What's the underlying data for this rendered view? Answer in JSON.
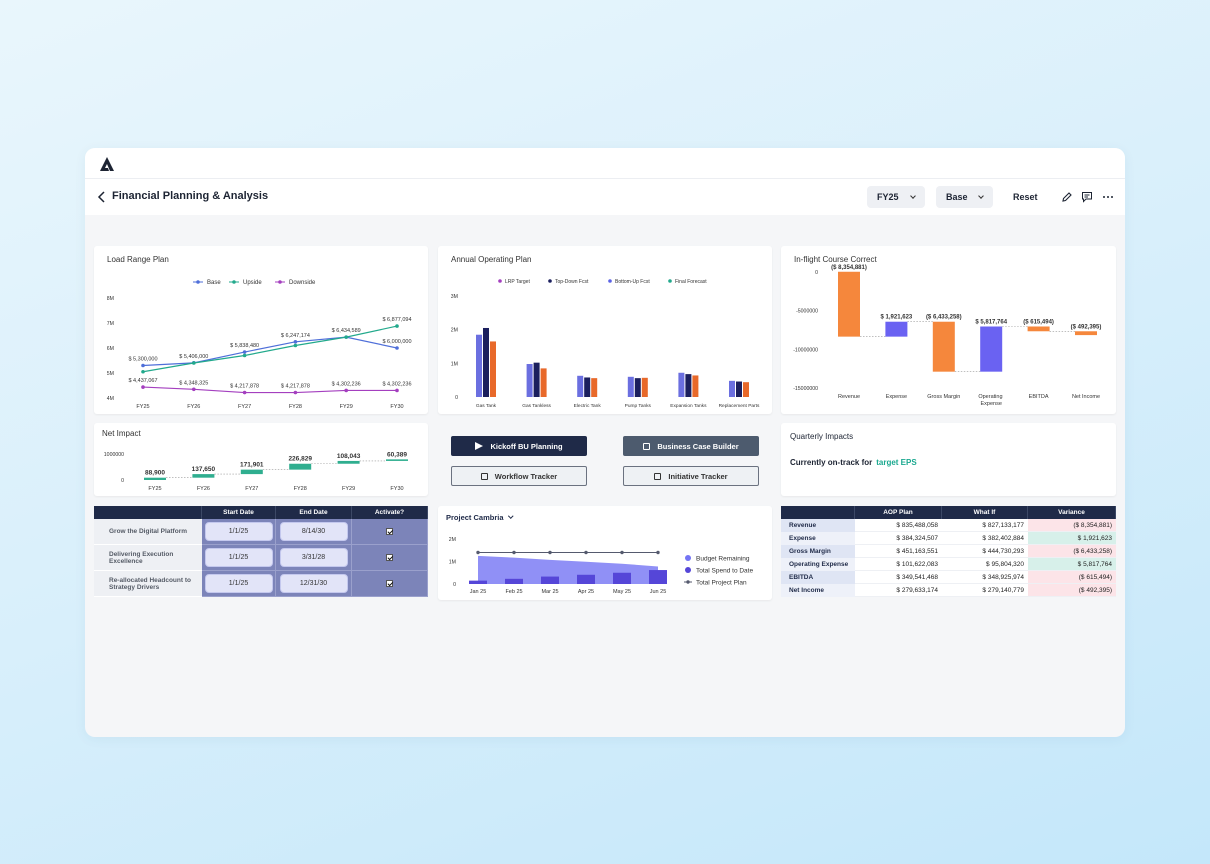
{
  "header": {
    "title": "Financial Planning & Analysis",
    "period": "FY25",
    "scenario": "Base",
    "reset": "Reset"
  },
  "load_range_plan": {
    "type": "line",
    "title": "Load Range Plan",
    "categories": [
      "FY25",
      "FY26",
      "FY27",
      "FY28",
      "FY29",
      "FY30"
    ],
    "ylim": [
      4000000,
      8000000
    ],
    "yticks": [
      {
        "value": 4000000,
        "label": "4M"
      },
      {
        "value": 5000000,
        "label": "5M"
      },
      {
        "value": 6000000,
        "label": "6M"
      },
      {
        "value": 7000000,
        "label": "7M"
      },
      {
        "value": 8000000,
        "label": "8M"
      }
    ],
    "legend": "top",
    "series": [
      {
        "name": "Base",
        "color": "#4f6fd9",
        "values": [
          5300000,
          5406000,
          5838480,
          6247174,
          6434589,
          6000000
        ],
        "value_labels": [
          "$ 5,300,000",
          "$ 5,406,000",
          "$ 5,838,480",
          "$ 6,247,174",
          "$ 6,434,589",
          "$ 6,000,000"
        ]
      },
      {
        "name": "Upside",
        "color": "#22a98c",
        "values": [
          5050000,
          5400000,
          5700000,
          6100000,
          6434589,
          6877094
        ],
        "value_labels": [
          null,
          null,
          null,
          null,
          null,
          "$ 6,877,094"
        ]
      },
      {
        "name": "Downside",
        "color": "#a43fbf",
        "values": [
          4437067,
          4348325,
          4217878,
          4217878,
          4302236,
          4302236
        ],
        "value_labels": [
          "$ 4,437,067",
          "$ 4,348,325",
          "$ 4,217,878",
          "$ 4,217,878",
          "$ 4,302,236",
          "$ 4,302,236"
        ]
      }
    ]
  },
  "annual_operating_plan": {
    "type": "bar",
    "title": "Annual Operating Plan",
    "categories": [
      "Gas Tank",
      "Gas Tankless",
      "Electric Tank",
      "Pump Tanks",
      "Expansion Tanks",
      "Replacement Parts"
    ],
    "ylim": [
      0,
      3000000
    ],
    "yticks": [
      0,
      {
        "value": 1000000,
        "label": "1M"
      },
      {
        "value": 2000000,
        "label": "2M"
      },
      {
        "value": 3000000,
        "label": "3M"
      }
    ],
    "legend": [
      {
        "name": "LRP Target",
        "color": "#a43fbf"
      },
      {
        "name": "Top-Down Fcst",
        "color": "#1b1f5e"
      },
      {
        "name": "Bottom-Up Fcst",
        "color": "#5b63e6"
      },
      {
        "name": "Final Forecast",
        "color": "#22a98c"
      }
    ],
    "series": [
      {
        "color": "#6b6fe0",
        "values": [
          1850000,
          980000,
          630000,
          600000,
          720000,
          480000
        ]
      },
      {
        "color": "#1b1f5e",
        "values": [
          2050000,
          1020000,
          580000,
          560000,
          680000,
          460000
        ]
      },
      {
        "color": "#e8692a",
        "values": [
          1650000,
          850000,
          560000,
          570000,
          640000,
          440000
        ]
      }
    ]
  },
  "in_flight_course_correct": {
    "type": "waterfall",
    "title": "In-flight Course Correct",
    "categories": [
      "Revenue",
      "Expense",
      "Gross Margin",
      "Operating Expense",
      "EBITDA",
      "Net Income"
    ],
    "values": [
      -8354881,
      1921623,
      -6433258,
      5817764,
      -615494,
      -492395
    ],
    "value_labels": [
      "($ 8,354,881)",
      "$ 1,921,623",
      "($ 6,433,258)",
      "$ 5,817,764",
      "($ 615,494)",
      "($ 492,395)"
    ],
    "ylim": [
      -16000000,
      1000000
    ],
    "yticks": [
      0,
      -5000000,
      -10000000,
      -15000000
    ],
    "colors": {
      "increase": "#6a62f2",
      "decrease": "#f5873c"
    }
  },
  "net_impact": {
    "type": "waterfall",
    "title": "Net Impact",
    "categories": [
      "FY25",
      "FY26",
      "FY27",
      "FY28",
      "FY29",
      "FY30"
    ],
    "values": [
      88900,
      137650,
      171901,
      226829,
      108043,
      60389
    ],
    "value_labels": [
      "88,900",
      "137,650",
      "171,901",
      "226,829",
      "108,043",
      "60,389"
    ],
    "ylim": [
      0,
      1000000
    ],
    "yticks": [
      0,
      1000000
    ],
    "colors": {
      "increase": "#2fae8f",
      "decrease": "#2fae8f"
    }
  },
  "actions": [
    {
      "label": "Kickoff BU Planning",
      "style": "primary"
    },
    {
      "label": "Business Case Builder",
      "style": "secondary"
    },
    {
      "label": "Workflow Tracker",
      "style": "outline"
    },
    {
      "label": "Initiative Tracker",
      "style": "outline"
    }
  ],
  "quarterly_impacts": {
    "title": "Quarterly Impacts",
    "text": "Currently on-track for",
    "highlight": "target EPS"
  },
  "initiatives": {
    "columns": [
      "Start Date",
      "End Date",
      "Activate?"
    ],
    "rows": [
      {
        "name": "Grow the Digital Platform",
        "start": "1/1/25",
        "end": "8/14/30",
        "active": true
      },
      {
        "name": "Delivering Execution Excellence",
        "start": "1/1/25",
        "end": "3/31/28",
        "active": true
      },
      {
        "name": "Re-allocated Headcount to Strategy Drivers",
        "start": "1/1/25",
        "end": "12/31/30",
        "active": true
      }
    ]
  },
  "project_cambria": {
    "type": "combo",
    "title": "Project Cambria",
    "categories": [
      "Jan 25",
      "Feb 25",
      "Mar 25",
      "Apr 25",
      "May 25",
      "Jun 25"
    ],
    "ylim": [
      0,
      2000000
    ],
    "yticks": [
      0,
      {
        "value": 1000000,
        "label": "1M"
      },
      {
        "value": 2000000,
        "label": "2M"
      }
    ],
    "series": [
      {
        "name": "Budget Remaining",
        "kind": "area",
        "color": "#7474f4",
        "values": [
          1250000,
          1170000,
          1070000,
          990000,
          900000,
          780000
        ]
      },
      {
        "name": "Total Spend to Date",
        "kind": "bar",
        "color": "#5546d8",
        "values": [
          150000,
          230000,
          330000,
          410000,
          500000,
          620000
        ]
      },
      {
        "name": "Total Project Plan",
        "kind": "line",
        "color": "#555a6e",
        "values": [
          1400000,
          1400000,
          1400000,
          1400000,
          1400000,
          1400000
        ]
      }
    ]
  },
  "variance_table": {
    "columns": [
      "AOP Plan",
      "What If",
      "Variance"
    ],
    "rows": [
      {
        "label": "Revenue",
        "aop": "$ 835,488,058",
        "what_if": "$ 827,133,177",
        "variance": "($ 8,354,881)",
        "tone": "negative"
      },
      {
        "label": "Expense",
        "aop": "$ 384,324,507",
        "what_if": "$ 382,402,884",
        "variance": "$ 1,921,623",
        "tone": "positive"
      },
      {
        "label": "Gross Margin",
        "aop": "$ 451,163,551",
        "what_if": "$ 444,730,293",
        "variance": "($ 6,433,258)",
        "tone": "negative"
      },
      {
        "label": "Operating Expense",
        "aop": "$ 101,622,083",
        "what_if": "$ 95,804,320",
        "variance": "$ 5,817,764",
        "tone": "positive"
      },
      {
        "label": "EBITDA",
        "aop": "$ 349,541,468",
        "what_if": "$ 348,925,974",
        "variance": "($ 615,494)",
        "tone": "negative"
      },
      {
        "label": "Net Income",
        "aop": "$ 279,633,174",
        "what_if": "$ 279,140,779",
        "variance": "($ 492,395)",
        "tone": "negative"
      }
    ]
  }
}
